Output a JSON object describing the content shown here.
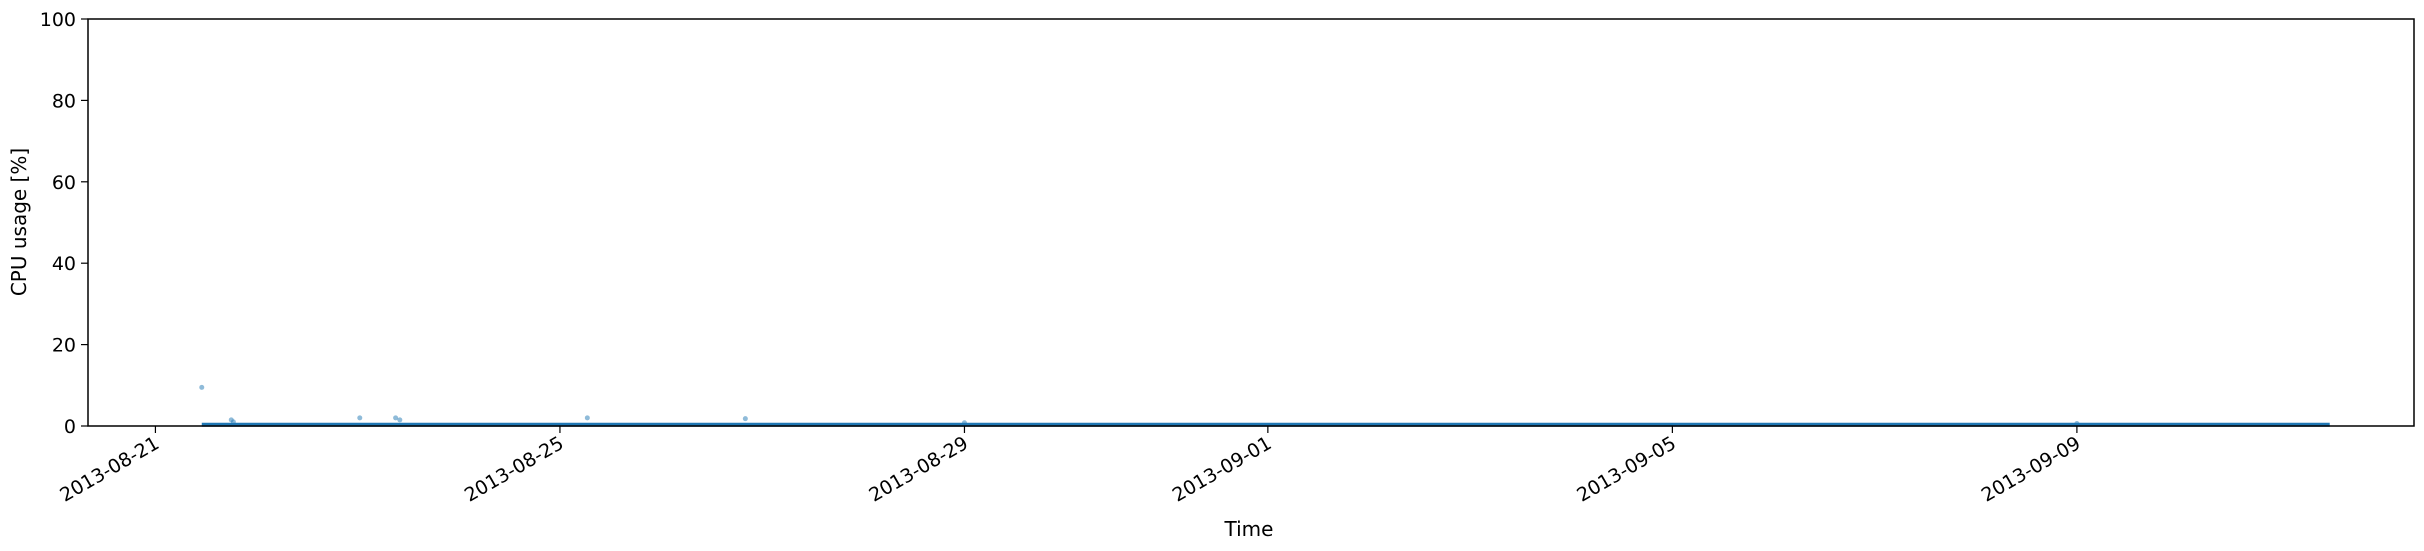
{
  "chart_data": {
    "type": "scatter",
    "title": "",
    "xlabel": "Time",
    "ylabel": "CPU usage [%]",
    "x_type": "date",
    "xlim": [
      "2013-08-20T08:00",
      "2013-09-12T08:00"
    ],
    "ylim": [
      0,
      100
    ],
    "x_ticks": [
      "2013-08-21",
      "2013-08-25",
      "2013-08-29",
      "2013-09-01",
      "2013-09-05",
      "2013-09-09"
    ],
    "y_ticks": [
      0,
      20,
      40,
      60,
      80,
      100
    ],
    "grid": false,
    "legend": "none",
    "marker_color": "#1f77b4",
    "baseline": {
      "x_start": "2013-08-21T11:00",
      "x_end": "2013-09-11T12:00",
      "y": 0.3
    },
    "points": [
      {
        "x": "2013-08-21T11:00",
        "y": 9.5
      },
      {
        "x": "2013-08-21T18:00",
        "y": 1.5
      },
      {
        "x": "2013-08-21T18:30",
        "y": 1.0
      },
      {
        "x": "2013-08-23T00:30",
        "y": 2.0
      },
      {
        "x": "2013-08-23T09:00",
        "y": 2.0
      },
      {
        "x": "2013-08-23T10:00",
        "y": 1.5
      },
      {
        "x": "2013-08-25T06:30",
        "y": 2.0
      },
      {
        "x": "2013-08-26T20:00",
        "y": 1.8
      },
      {
        "x": "2013-08-29T00:00",
        "y": 0.8
      },
      {
        "x": "2013-09-09T00:00",
        "y": 0.6
      }
    ]
  }
}
